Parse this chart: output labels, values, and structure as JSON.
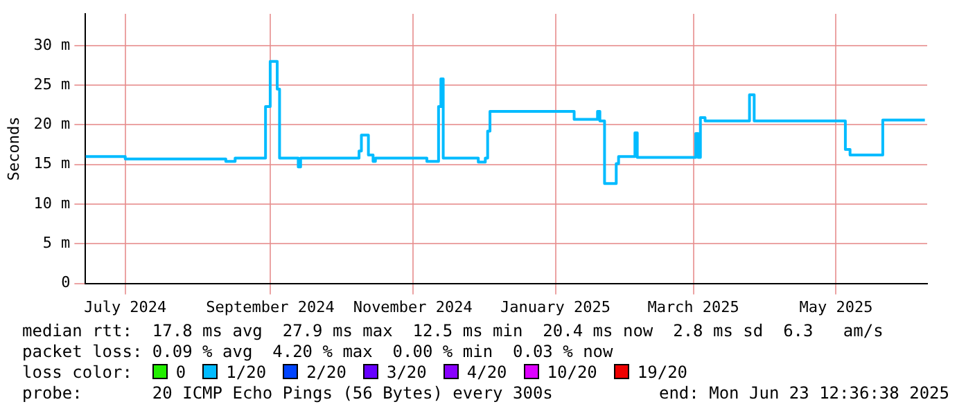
{
  "chart_data": {
    "type": "step",
    "ylabel": "Seconds",
    "legend_title": "loss color:",
    "legend": "bottom",
    "grid": true,
    "xlim": [
      "2024-06-28",
      "2025-06-23"
    ],
    "xticks": [
      {
        "value": "2024-07-15",
        "label": "July 2024"
      },
      {
        "value": "2024-09-15",
        "label": "September 2024"
      },
      {
        "value": "2024-11-15",
        "label": "November 2024"
      },
      {
        "value": "2025-01-15",
        "label": "January 2025"
      },
      {
        "value": "2025-03-15",
        "label": "March 2025"
      },
      {
        "value": "2025-05-15",
        "label": "May 2025"
      }
    ],
    "ylim": [
      0,
      34
    ],
    "yticks": [
      0,
      {
        "value": 5,
        "label": "5 m"
      },
      {
        "value": 10,
        "label": "10 m"
      },
      {
        "value": 15,
        "label": "15 m"
      },
      {
        "value": 20,
        "label": "20 m"
      },
      {
        "value": 25,
        "label": "25 m"
      },
      {
        "value": 30,
        "label": "30 m"
      }
    ],
    "x": [
      "2024-06-28",
      "2024-07-15",
      "2024-08-27",
      "2024-08-31",
      "2024-09-13",
      "2024-09-15",
      "2024-09-18",
      "2024-09-19",
      "2024-09-27",
      "2024-09-28",
      "2024-10-23",
      "2024-10-24",
      "2024-10-27",
      "2024-10-29",
      "2024-10-30",
      "2024-11-21",
      "2024-11-26",
      "2024-11-27",
      "2024-11-28",
      "2024-12-13",
      "2024-12-16",
      "2024-12-17",
      "2024-12-18",
      "2025-01-23",
      "2025-02-02",
      "2025-02-03",
      "2025-02-05",
      "2025-02-10",
      "2025-02-11",
      "2025-02-18",
      "2025-02-19",
      "2025-03-16",
      "2025-03-17",
      "2025-03-18",
      "2025-03-20",
      "2025-04-08",
      "2025-04-10",
      "2025-05-19",
      "2025-05-21",
      "2025-06-04",
      "2025-06-22"
    ],
    "series": [
      {
        "color": "#00bbff",
        "values": [
          16.0,
          15.7,
          15.4,
          15.8,
          22.3,
          28.0,
          24.5,
          15.8,
          14.7,
          15.8,
          16.7,
          18.7,
          16.2,
          15.4,
          15.8,
          15.4,
          22.3,
          25.8,
          15.8,
          15.3,
          15.8,
          19.2,
          21.7,
          20.7,
          21.7,
          20.5,
          12.6,
          15.1,
          16.0,
          19.0,
          15.9,
          18.9,
          15.9,
          20.9,
          20.5,
          23.8,
          20.5,
          16.9,
          16.2,
          20.6,
          20.6
        ]
      },
      {
        "name": "0",
        "color": "#22ee00",
        "values": [
          null,
          null,
          null,
          null,
          null,
          null,
          null,
          null,
          null,
          null,
          null,
          null,
          null,
          null,
          null,
          null,
          null,
          null,
          null,
          null,
          null,
          null,
          null,
          null,
          null,
          null,
          null,
          null,
          null,
          null,
          null,
          null,
          null,
          null,
          null,
          null,
          null,
          null,
          null,
          null,
          null
        ]
      },
      {
        "name": "1/20",
        "color": "#00bbff",
        "values": [
          null,
          null,
          null,
          null,
          null,
          null,
          null,
          null,
          null,
          null,
          null,
          null,
          null,
          null,
          null,
          null,
          null,
          null,
          null,
          null,
          null,
          null,
          null,
          null,
          null,
          null,
          null,
          null,
          null,
          null,
          null,
          null,
          null,
          null,
          null,
          null,
          null,
          null,
          null,
          null,
          null
        ]
      },
      {
        "name": "2/20",
        "color": "#0044ff",
        "values": [
          null,
          null,
          null,
          null,
          null,
          null,
          null,
          null,
          null,
          null,
          null,
          null,
          null,
          null,
          null,
          null,
          null,
          null,
          null,
          null,
          null,
          null,
          null,
          null,
          null,
          null,
          null,
          null,
          null,
          null,
          null,
          null,
          null,
          null,
          null,
          null,
          null,
          null,
          null,
          null,
          null
        ]
      },
      {
        "name": "3/20",
        "color": "#6600ff",
        "values": [
          null,
          null,
          null,
          null,
          null,
          null,
          null,
          null,
          null,
          null,
          null,
          null,
          null,
          null,
          null,
          null,
          null,
          null,
          null,
          null,
          null,
          null,
          null,
          null,
          null,
          null,
          null,
          null,
          null,
          null,
          null,
          null,
          null,
          null,
          null,
          null,
          null,
          null,
          null,
          null,
          null
        ]
      },
      {
        "name": "4/20",
        "color": "#8800ff",
        "values": [
          null,
          null,
          null,
          null,
          null,
          null,
          null,
          null,
          null,
          null,
          null,
          null,
          null,
          null,
          null,
          null,
          null,
          null,
          null,
          null,
          null,
          null,
          null,
          null,
          null,
          null,
          null,
          null,
          null,
          null,
          null,
          null,
          null,
          null,
          null,
          null,
          null,
          null,
          null,
          null,
          null
        ]
      },
      {
        "name": "10/20",
        "color": "#dd00ff",
        "values": [
          null,
          null,
          null,
          null,
          null,
          null,
          null,
          null,
          null,
          null,
          null,
          null,
          null,
          null,
          null,
          null,
          null,
          null,
          null,
          null,
          null,
          null,
          null,
          null,
          null,
          null,
          null,
          null,
          null,
          null,
          null,
          null,
          null,
          null,
          null,
          null,
          null,
          null,
          null,
          null,
          null
        ]
      },
      {
        "name": "19/20",
        "color": "#ee0000",
        "values": [
          null,
          null,
          null,
          null,
          null,
          null,
          null,
          null,
          null,
          null,
          null,
          null,
          null,
          null,
          null,
          null,
          null,
          null,
          null,
          null,
          null,
          null,
          null,
          null,
          null,
          null,
          null,
          null,
          null,
          null,
          null,
          null,
          null,
          null,
          null,
          null,
          null,
          null,
          null,
          null,
          null
        ]
      }
    ],
    "annotations": [
      "median rtt:  17.8 ms avg  27.9 ms max  12.5 ms min  20.4 ms now  2.8 ms sd  6.3   am/s",
      "packet loss: 0.09 % avg  4.20 % max  0.00 % min  0.03 % now",
      "probe:       20 ICMP Echo Pings (56 Bytes) every 300s",
      "end: Mon Jun 23 12:36:38 2025"
    ]
  }
}
